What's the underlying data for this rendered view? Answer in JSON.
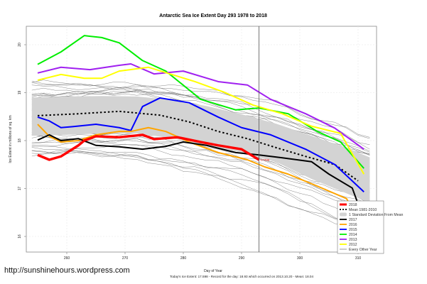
{
  "chart_data": {
    "type": "line",
    "title": "Antarctic Sea Ice Extent Day 293 1978 to 2018",
    "xlabel": "Day of Year",
    "ylabel": "Ice Extent in millions of sq. km",
    "xlim": [
      254,
      312
    ],
    "ylim": [
      15.6,
      20.4
    ],
    "x_ticks": [
      260,
      270,
      280,
      290,
      300,
      310
    ],
    "y_ticks": [
      16,
      17,
      18,
      19,
      20
    ],
    "grid": true,
    "current_day": 293,
    "current_value_label": "17.598",
    "legend_position": "bottom-right",
    "legend": [
      {
        "label": "2018",
        "color": "#ff0000",
        "style": "thick"
      },
      {
        "label": "Mean 1981-2010",
        "color": "#000000",
        "style": "dotted"
      },
      {
        "label": "1 Standard Deviation From Mean",
        "color": "#d3d3d3",
        "style": "band"
      },
      {
        "label": "2017",
        "color": "#000000",
        "style": "solid"
      },
      {
        "label": "2016",
        "color": "#ffa500",
        "style": "solid"
      },
      {
        "label": "2015",
        "color": "#0000ff",
        "style": "solid"
      },
      {
        "label": "2014",
        "color": "#00ee00",
        "style": "solid"
      },
      {
        "label": "2013",
        "color": "#a020f0",
        "style": "solid"
      },
      {
        "label": "2012",
        "color": "#ffff00",
        "style": "solid"
      },
      {
        "label": "Every Other Year",
        "color": "#555555",
        "style": "thin"
      }
    ],
    "sd_band": {
      "x": [
        254,
        260,
        266,
        272,
        278,
        284,
        290,
        296,
        302,
        308,
        312
      ],
      "upper": [
        18.9,
        18.92,
        18.93,
        18.92,
        18.85,
        18.72,
        18.55,
        18.35,
        18.1,
        17.85,
        17.65
      ],
      "lower": [
        18.1,
        18.12,
        18.15,
        18.15,
        18.05,
        17.9,
        17.75,
        17.55,
        17.2,
        16.9,
        16.7
      ]
    },
    "series": [
      {
        "name": "Mean 1981-2010",
        "color": "#000000",
        "style": "dotted",
        "x": [
          255,
          262,
          269,
          276,
          281,
          286,
          291,
          296,
          301,
          306,
          310
        ],
        "values": [
          18.52,
          18.56,
          18.61,
          18.53,
          18.39,
          18.19,
          18.04,
          17.85,
          17.67,
          17.5,
          17.16
        ]
      },
      {
        "name": "2014",
        "color": "#00ee00",
        "style": "solid",
        "x": [
          255,
          259,
          263,
          266,
          269,
          273,
          277,
          283,
          289,
          293,
          298,
          303,
          307,
          311
        ],
        "values": [
          19.59,
          19.85,
          20.19,
          20.15,
          20.04,
          19.67,
          19.45,
          18.86,
          18.64,
          18.68,
          18.56,
          18.19,
          17.97,
          17.42
        ]
      },
      {
        "name": "2013",
        "color": "#a020f0",
        "style": "solid",
        "x": [
          255,
          259,
          264,
          269,
          271,
          275,
          280,
          286,
          291,
          295,
          301,
          306,
          311
        ],
        "values": [
          19.41,
          19.53,
          19.48,
          19.57,
          19.6,
          19.39,
          19.45,
          19.23,
          19.16,
          18.86,
          18.56,
          18.26,
          17.82
        ]
      },
      {
        "name": "2012",
        "color": "#ffff00",
        "style": "solid",
        "x": [
          255,
          259,
          263,
          266,
          269,
          274,
          278,
          282,
          287,
          292,
          297,
          302,
          307,
          311
        ],
        "values": [
          19.26,
          19.38,
          19.3,
          19.3,
          19.45,
          19.53,
          19.38,
          19.23,
          19.01,
          18.74,
          18.56,
          18.3,
          18.15,
          17.3
        ]
      },
      {
        "name": "2015",
        "color": "#0000ff",
        "style": "solid",
        "x": [
          255,
          257,
          259,
          261,
          265,
          269,
          271,
          273,
          276,
          281,
          286,
          290,
          295,
          301,
          306,
          311
        ],
        "values": [
          18.49,
          18.41,
          18.27,
          18.29,
          18.34,
          18.27,
          18.21,
          18.71,
          18.89,
          18.79,
          18.49,
          18.27,
          18.12,
          17.82,
          17.5,
          16.93
        ]
      },
      {
        "name": "2016",
        "color": "#ffa500",
        "style": "solid",
        "x": [
          255,
          257,
          259,
          262,
          265,
          269,
          271,
          274,
          277,
          281,
          286,
          291,
          294,
          298,
          303,
          308,
          311
        ],
        "values": [
          18.34,
          18.09,
          17.97,
          18.0,
          18.12,
          18.19,
          18.19,
          18.27,
          18.19,
          17.97,
          17.75,
          17.6,
          17.45,
          17.3,
          17.05,
          16.79,
          16.16
        ]
      },
      {
        "name": "2017",
        "color": "#000000",
        "style": "solid",
        "x": [
          255,
          257,
          259,
          262,
          265,
          269,
          273,
          277,
          280,
          284,
          289,
          293,
          297,
          302,
          305,
          309,
          311
        ],
        "values": [
          18.01,
          18.12,
          18.0,
          18.04,
          17.9,
          17.87,
          17.82,
          17.88,
          17.97,
          17.9,
          17.75,
          17.7,
          17.64,
          17.56,
          17.3,
          17.01,
          16.34
        ]
      },
      {
        "name": "2018",
        "color": "#ff0000",
        "style": "thick",
        "x": [
          255,
          257,
          259,
          262,
          263,
          265,
          269,
          273,
          275,
          279,
          283,
          286,
          290,
          293
        ],
        "values": [
          17.7,
          17.6,
          17.67,
          17.9,
          18.0,
          18.09,
          18.07,
          18.12,
          18.03,
          18.07,
          17.97,
          17.9,
          17.82,
          17.598
        ]
      }
    ]
  },
  "watermark": "http://sunshinehours.wordpress.com",
  "footer": "Today's Ice Extent: 17.598  - Record for the day: 18.93 which occurred on 2013.10.20  - Mean: 18.04"
}
